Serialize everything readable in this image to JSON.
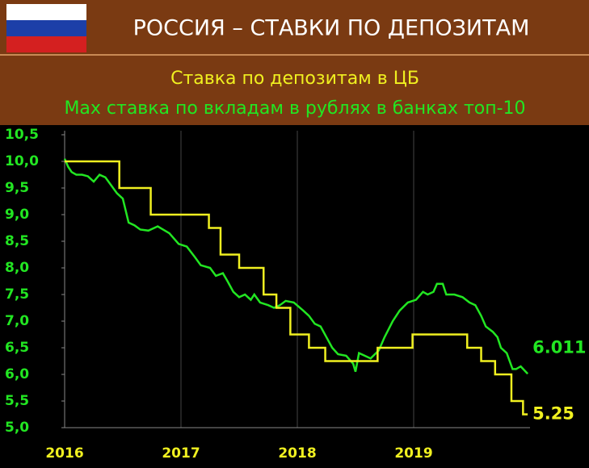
{
  "chart_data": {
    "type": "line",
    "title": "РОССИЯ – СТАВКИ ПО ДЕПОЗИТАМ",
    "series": [
      {
        "name": "Max ставка по вкладам в рублях в банках топ-10",
        "color": "#22e622",
        "step": false,
        "x": [
          2016.0,
          2016.03,
          2016.06,
          2016.1,
          2016.15,
          2016.2,
          2016.25,
          2016.3,
          2016.35,
          2016.45,
          2016.5,
          2016.55,
          2016.6,
          2016.65,
          2016.72,
          2016.8,
          2016.9,
          2016.98,
          2017.05,
          2017.12,
          2017.17,
          2017.25,
          2017.3,
          2017.36,
          2017.4,
          2017.45,
          2017.5,
          2017.55,
          2017.6,
          2017.63,
          2017.68,
          2017.75,
          2017.8,
          2017.85,
          2017.9,
          2017.97,
          2018.05,
          2018.1,
          2018.15,
          2018.2,
          2018.25,
          2018.3,
          2018.35,
          2018.42,
          2018.48,
          2018.5,
          2018.53,
          2018.58,
          2018.63,
          2018.7,
          2018.75,
          2018.82,
          2018.88,
          2018.95,
          2019.02,
          2019.08,
          2019.12,
          2019.17,
          2019.2,
          2019.25,
          2019.28,
          2019.35,
          2019.42,
          2019.48,
          2019.53,
          2019.58,
          2019.62,
          2019.68,
          2019.72,
          2019.75,
          2019.8,
          2019.85,
          2019.88,
          2019.92,
          2019.98
        ],
        "values": [
          10.05,
          9.9,
          9.8,
          9.75,
          9.75,
          9.72,
          9.62,
          9.75,
          9.7,
          9.4,
          9.3,
          8.85,
          8.8,
          8.72,
          8.7,
          8.78,
          8.65,
          8.45,
          8.4,
          8.2,
          8.05,
          8.0,
          7.85,
          7.9,
          7.75,
          7.55,
          7.45,
          7.5,
          7.4,
          7.5,
          7.35,
          7.3,
          7.25,
          7.3,
          7.38,
          7.35,
          7.2,
          7.1,
          6.95,
          6.9,
          6.7,
          6.5,
          6.38,
          6.35,
          6.2,
          6.05,
          6.4,
          6.35,
          6.3,
          6.45,
          6.7,
          7.0,
          7.2,
          7.35,
          7.4,
          7.55,
          7.5,
          7.55,
          7.7,
          7.7,
          7.5,
          7.5,
          7.45,
          7.35,
          7.3,
          7.1,
          6.9,
          6.8,
          6.7,
          6.5,
          6.4,
          6.1,
          6.1,
          6.15,
          6.011
        ]
      },
      {
        "name": "Ставка по депозитам в ЦБ",
        "color": "#f0f020",
        "step": true,
        "x": [
          2016.0,
          2016.47,
          2016.74,
          2017.24,
          2017.34,
          2017.5,
          2017.71,
          2017.82,
          2017.94,
          2018.1,
          2018.24,
          2018.69,
          2018.99,
          2019.46,
          2019.58,
          2019.7,
          2019.84,
          2019.94,
          2019.98
        ],
        "values": [
          10,
          9.5,
          9,
          8.75,
          8.25,
          8,
          7.5,
          7.25,
          6.75,
          6.5,
          6.25,
          6.5,
          6.75,
          6.5,
          6.25,
          6,
          5.5,
          5.25,
          5.25
        ]
      }
    ],
    "xlim": [
      2016,
      2020
    ],
    "xticks": [
      2016,
      2017,
      2018,
      2019
    ],
    "ylim": [
      5,
      10.5
    ],
    "yticks": [
      {
        "value": 5,
        "label": "5,0"
      },
      {
        "value": 5.5,
        "label": "5,5"
      },
      {
        "value": 6,
        "label": "6,0"
      },
      {
        "value": 6.5,
        "label": "6,5"
      },
      {
        "value": 7,
        "label": "7,0"
      },
      {
        "value": 7.5,
        "label": "7,5"
      },
      {
        "value": 8,
        "label": "8,0"
      },
      {
        "value": 8.5,
        "label": "8,5"
      },
      {
        "value": 9,
        "label": "9,0"
      },
      {
        "value": 9.5,
        "label": "9,5"
      },
      {
        "value": 10,
        "label": "10,0"
      },
      {
        "value": 10.5,
        "label": "10,5"
      }
    ],
    "grid": "x"
  }
}
